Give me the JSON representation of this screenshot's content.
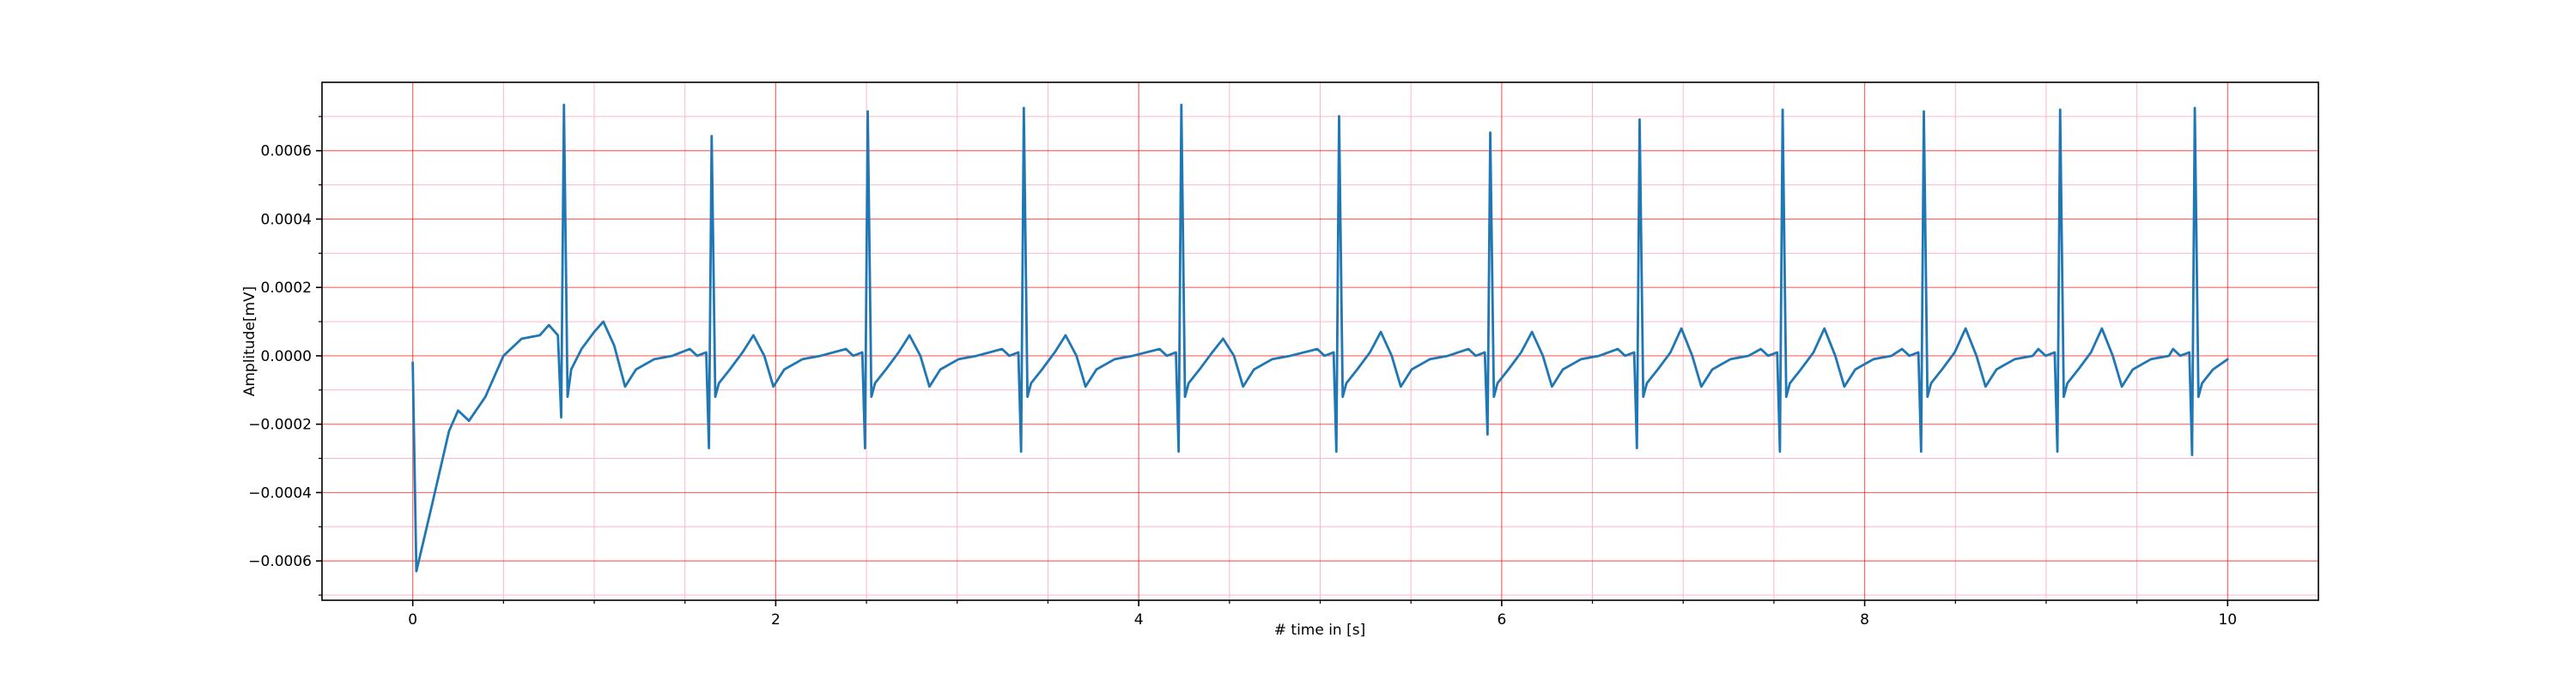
{
  "chart_data": {
    "type": "line",
    "xlabel": "# time in [s]",
    "ylabel": "Amplitude[mV]",
    "color": "#1f77b4",
    "grid": true,
    "major_grid_color": "#ff0000",
    "minor_grid_color": "#ffb6c8",
    "xlim": [
      -0.5,
      10.5
    ],
    "ylim": [
      -0.000715,
      0.0008
    ],
    "xticks": [
      0,
      2,
      4,
      6,
      8,
      10
    ],
    "yticks": [
      {
        "value": -0.0006,
        "label": "−0.0006"
      },
      {
        "value": -0.0004,
        "label": "−0.0004"
      },
      {
        "value": -0.0002,
        "label": "−0.0002"
      },
      {
        "value": 0,
        "label": "0.0000"
      },
      {
        "value": 0.0002,
        "label": "0.0002"
      },
      {
        "value": 0.0004,
        "label": "0.0004"
      },
      {
        "value": 0.0006,
        "label": "0.0006"
      }
    ],
    "xminorticks": [
      0.5,
      1,
      1.5,
      2.5,
      3,
      3.5,
      4.5,
      5,
      5.5,
      6.5,
      7,
      7.5,
      8.5,
      9,
      9.5
    ],
    "yminorticks": [
      -0.0007,
      -0.0005,
      -0.0003,
      -0.0001,
      0.0001,
      0.0003,
      0.0005,
      0.0007
    ],
    "x": [
      0,
      0.02,
      0.1,
      0.2,
      0.25,
      0.31,
      0.4,
      0.5,
      0.6,
      0.7,
      0.75,
      0.8,
      0.818,
      0.833,
      0.853,
      0.873,
      0.93,
      1.0,
      1.05,
      1.11,
      1.17,
      1.23,
      1.33,
      1.43,
      1.527,
      1.567,
      1.617,
      1.632,
      1.647,
      1.667,
      1.687,
      1.747,
      1.817,
      1.877,
      1.937,
      1.987,
      2.047,
      2.147,
      2.247,
      2.387,
      2.427,
      2.477,
      2.492,
      2.507,
      2.527,
      2.547,
      2.607,
      2.677,
      2.737,
      2.797,
      2.847,
      2.907,
      3.007,
      3.107,
      3.247,
      3.287,
      3.337,
      3.352,
      3.367,
      3.387,
      3.407,
      3.467,
      3.537,
      3.597,
      3.657,
      3.707,
      3.767,
      3.867,
      3.967,
      4.115,
      4.155,
      4.205,
      4.22,
      4.235,
      4.255,
      4.275,
      4.335,
      4.405,
      4.465,
      4.525,
      4.575,
      4.635,
      4.735,
      4.835,
      4.984,
      5.024,
      5.074,
      5.089,
      5.104,
      5.124,
      5.144,
      5.204,
      5.274,
      5.334,
      5.394,
      5.444,
      5.504,
      5.604,
      5.704,
      5.817,
      5.857,
      5.907,
      5.922,
      5.937,
      5.957,
      5.977,
      6.037,
      6.107,
      6.167,
      6.227,
      6.277,
      6.337,
      6.437,
      6.537,
      6.64,
      6.68,
      6.73,
      6.745,
      6.76,
      6.78,
      6.8,
      6.86,
      6.93,
      6.99,
      7.05,
      7.1,
      7.16,
      7.26,
      7.36,
      7.428,
      7.468,
      7.518,
      7.533,
      7.548,
      7.568,
      7.588,
      7.648,
      7.718,
      7.778,
      7.838,
      7.888,
      7.948,
      8.048,
      8.148,
      8.206,
      8.246,
      8.296,
      8.311,
      8.326,
      8.346,
      8.366,
      8.426,
      8.496,
      8.556,
      8.616,
      8.666,
      8.726,
      8.826,
      8.926,
      8.957,
      8.997,
      9.047,
      9.062,
      9.077,
      9.097,
      9.117,
      9.177,
      9.247,
      9.307,
      9.367,
      9.417,
      9.477,
      9.577,
      9.677,
      9.699,
      9.739,
      9.789,
      9.804,
      9.819,
      9.839,
      9.859,
      9.919,
      10.0
    ],
    "values": [
      -2e-05,
      -0.00063,
      -0.00045,
      -0.00022,
      -0.00016,
      -0.00019,
      -0.00012,
      0,
      5e-05,
      6e-05,
      9e-05,
      6e-05,
      -0.00018,
      0.000734,
      -0.00012,
      -4e-05,
      2e-05,
      7e-05,
      0.0001,
      3e-05,
      -9e-05,
      -4e-05,
      -1e-05,
      0,
      2e-05,
      0,
      1e-05,
      -0.00027,
      0.000643,
      -0.00012,
      -8e-05,
      -4e-05,
      1e-05,
      6e-05,
      0,
      -9e-05,
      -4e-05,
      -1e-05,
      0,
      2e-05,
      0,
      1e-05,
      -0.00027,
      0.000715,
      -0.00012,
      -8e-05,
      -4e-05,
      1e-05,
      6e-05,
      0,
      -9e-05,
      -4e-05,
      -1e-05,
      0,
      2e-05,
      0,
      1e-05,
      -0.00028,
      0.000725,
      -0.00012,
      -8e-05,
      -4e-05,
      1e-05,
      6e-05,
      0,
      -9e-05,
      -4e-05,
      -1e-05,
      0,
      2e-05,
      0,
      1e-05,
      -0.00028,
      0.000734,
      -0.00012,
      -8e-05,
      -4e-05,
      1e-05,
      5e-05,
      0,
      -9e-05,
      -4e-05,
      -1e-05,
      0,
      2e-05,
      0,
      1e-05,
      -0.00028,
      0.000701,
      -0.00012,
      -8e-05,
      -4e-05,
      1e-05,
      7e-05,
      0,
      -9e-05,
      -4e-05,
      -1e-05,
      0,
      2e-05,
      0,
      1e-05,
      -0.00023,
      0.000653,
      -0.00012,
      -8e-05,
      -4e-05,
      1e-05,
      7e-05,
      0,
      -9e-05,
      -4e-05,
      -1e-05,
      0,
      2e-05,
      0,
      1e-05,
      -0.00027,
      0.000691,
      -0.00012,
      -8e-05,
      -4e-05,
      1e-05,
      8e-05,
      0,
      -9e-05,
      -4e-05,
      -1e-05,
      0,
      2e-05,
      0,
      1e-05,
      -0.00028,
      0.00072,
      -0.00012,
      -8e-05,
      -4e-05,
      1e-05,
      8e-05,
      0,
      -9e-05,
      -4e-05,
      -1e-05,
      0,
      2e-05,
      0,
      1e-05,
      -0.00028,
      0.000715,
      -0.00012,
      -8e-05,
      -4e-05,
      1e-05,
      8e-05,
      0,
      -9e-05,
      -4e-05,
      -1e-05,
      0,
      2e-05,
      0,
      1e-05,
      -0.00028,
      0.00072,
      -0.00012,
      -8e-05,
      -4e-05,
      1e-05,
      8e-05,
      0,
      -9e-05,
      -4e-05,
      -1e-05,
      0,
      2e-05,
      0,
      1e-05,
      -0.00029,
      0.000725,
      -0.00012,
      -8e-05,
      -4e-05,
      -1e-05
    ]
  }
}
